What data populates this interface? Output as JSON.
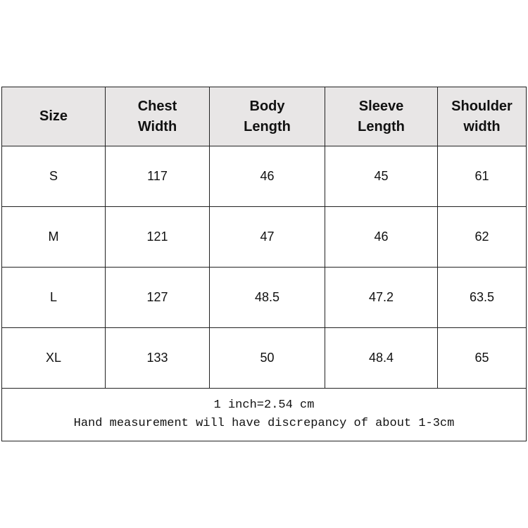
{
  "headers": [
    [
      "Size"
    ],
    [
      "Chest",
      "Width"
    ],
    [
      "Body",
      "Length"
    ],
    [
      "Sleeve",
      "Length"
    ],
    [
      "Shoulder",
      "width"
    ]
  ],
  "rows": [
    [
      "S",
      "117",
      "46",
      "45",
      "61"
    ],
    [
      "M",
      "121",
      "47",
      "46",
      "62"
    ],
    [
      "L",
      "127",
      "48.5",
      "47.2",
      "63.5"
    ],
    [
      "XL",
      "133",
      "50",
      "48.4",
      "65"
    ]
  ],
  "notes": [
    "1 inch=2.54 cm",
    "Hand measurement will have discrepancy of about 1-3cm"
  ],
  "colors": {
    "header_bg": "#e8e6e6",
    "border": "#222222"
  }
}
